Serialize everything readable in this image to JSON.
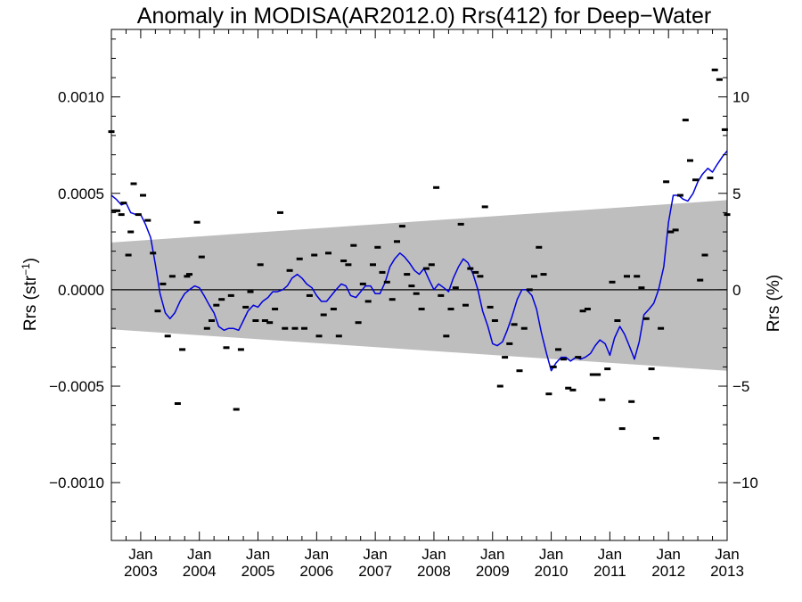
{
  "chart_data": {
    "type": "scatter",
    "title": "Anomaly in MODISA(AR2012.0) Rrs(412) for Deep−Water",
    "ylabel_left_main": "Rrs (str",
    "ylabel_left_sup": "−1",
    "ylabel_left_tail": ")",
    "ylabel_right": "Rrs (%)",
    "xlim": [
      2002.5,
      2013.0
    ],
    "ylim": [
      -0.0013,
      0.00135
    ],
    "ylim_right": [
      -13.0,
      13.5
    ],
    "y_ticks": [
      {
        "value": 0.001,
        "label": "0.0010"
      },
      {
        "value": 0.0005,
        "label": "0.0005"
      },
      {
        "value": 0.0,
        "label": "0.0000"
      },
      {
        "value": -0.0005,
        "label": "−0.0005"
      },
      {
        "value": -0.001,
        "label": "−0.0010"
      }
    ],
    "y_ticks_right": [
      {
        "value": 10,
        "label": "10"
      },
      {
        "value": 5,
        "label": "5"
      },
      {
        "value": 0,
        "label": "0"
      },
      {
        "value": -5,
        "label": "−5"
      },
      {
        "value": -10,
        "label": "−10"
      }
    ],
    "x_ticks": [
      {
        "value": 2003,
        "month": "Jan",
        "year": "2003"
      },
      {
        "value": 2004,
        "month": "Jan",
        "year": "2004"
      },
      {
        "value": 2005,
        "month": "Jan",
        "year": "2005"
      },
      {
        "value": 2006,
        "month": "Jan",
        "year": "2006"
      },
      {
        "value": 2007,
        "month": "Jan",
        "year": "2007"
      },
      {
        "value": 2008,
        "month": "Jan",
        "year": "2008"
      },
      {
        "value": 2009,
        "month": "Jan",
        "year": "2009"
      },
      {
        "value": 2010,
        "month": "Jan",
        "year": "2010"
      },
      {
        "value": 2011,
        "month": "Jan",
        "year": "2011"
      },
      {
        "value": 2012,
        "month": "Jan",
        "year": "2012"
      },
      {
        "value": 2013,
        "month": "Jan",
        "year": "2013"
      }
    ],
    "band": {
      "x": [
        2002.5,
        2013.0
      ],
      "upper": [
        0.000245,
        0.000465
      ],
      "lower": [
        -0.000205,
        -0.00042
      ]
    },
    "series": [
      {
        "values": [
          [
            2002.5,
            0.00082
          ],
          [
            2002.55,
            0.00041
          ],
          [
            2002.6,
            0.00041
          ],
          [
            2002.67,
            0.00039
          ],
          [
            2002.71,
            0.00045
          ],
          [
            2002.79,
            0.00018
          ],
          [
            2002.83,
            0.0003
          ],
          [
            2002.88,
            0.00055
          ],
          [
            2002.96,
            0.00039
          ],
          [
            2003.04,
            0.00049
          ],
          [
            2003.12,
            0.00036
          ],
          [
            2003.21,
            0.00019
          ],
          [
            2003.29,
            -0.00011
          ],
          [
            2003.38,
            3e-05
          ],
          [
            2003.46,
            -0.00024
          ],
          [
            2003.54,
            7e-05
          ],
          [
            2003.63,
            -0.00059
          ],
          [
            2003.71,
            -0.00031
          ],
          [
            2003.79,
            7e-05
          ],
          [
            2003.83,
            8e-05
          ],
          [
            2003.96,
            0.00035
          ],
          [
            2004.04,
            0.00017
          ],
          [
            2004.13,
            -0.0002
          ],
          [
            2004.21,
            -0.00016
          ],
          [
            2004.29,
            -8e-05
          ],
          [
            2004.38,
            -5e-05
          ],
          [
            2004.46,
            -0.0003
          ],
          [
            2004.54,
            -3e-05
          ],
          [
            2004.63,
            -0.00062
          ],
          [
            2004.71,
            -0.00031
          ],
          [
            2004.79,
            -9e-05
          ],
          [
            2004.87,
            -1e-05
          ],
          [
            2004.96,
            -0.00016
          ],
          [
            2005.04,
            0.00013
          ],
          [
            2005.12,
            -0.00016
          ],
          [
            2005.2,
            -0.00017
          ],
          [
            2005.29,
            -0.0001
          ],
          [
            2005.38,
            0.0004
          ],
          [
            2005.46,
            -0.0002
          ],
          [
            2005.54,
            0.0001
          ],
          [
            2005.63,
            -0.0002
          ],
          [
            2005.71,
            0.00016
          ],
          [
            2005.79,
            -0.0002
          ],
          [
            2005.88,
            -3e-05
          ],
          [
            2005.96,
            0.00018
          ],
          [
            2006.04,
            -0.00024
          ],
          [
            2006.12,
            -0.00013
          ],
          [
            2006.2,
            0.00019
          ],
          [
            2006.29,
            -0.0001
          ],
          [
            2006.38,
            -0.00024
          ],
          [
            2006.46,
            0.00015
          ],
          [
            2006.54,
            0.00013
          ],
          [
            2006.63,
            0.00023
          ],
          [
            2006.71,
            -0.00017
          ],
          [
            2006.79,
            3e-05
          ],
          [
            2006.88,
            -6e-05
          ],
          [
            2006.96,
            0.00013
          ],
          [
            2007.04,
            0.00022
          ],
          [
            2007.12,
            9e-05
          ],
          [
            2007.2,
            4e-05
          ],
          [
            2007.29,
            -5e-05
          ],
          [
            2007.37,
            0.00025
          ],
          [
            2007.46,
            0.00033
          ],
          [
            2007.54,
            8e-05
          ],
          [
            2007.62,
            2e-05
          ],
          [
            2007.7,
            -2e-05
          ],
          [
            2007.79,
            -0.0001
          ],
          [
            2007.87,
            0.00011
          ],
          [
            2007.96,
            0.00013
          ],
          [
            2008.04,
            0.00053
          ],
          [
            2008.12,
            -3e-05
          ],
          [
            2008.21,
            -0.00024
          ],
          [
            2008.29,
            -0.0001
          ],
          [
            2008.37,
            1e-05
          ],
          [
            2008.46,
            0.00034
          ],
          [
            2008.54,
            -8e-05
          ],
          [
            2008.62,
            0.00011
          ],
          [
            2008.71,
            9e-05
          ],
          [
            2008.79,
            7e-05
          ],
          [
            2008.87,
            0.00043
          ],
          [
            2008.96,
            -9e-05
          ],
          [
            2009.04,
            -0.00016
          ],
          [
            2009.13,
            -0.0005
          ],
          [
            2009.21,
            -0.00035
          ],
          [
            2009.29,
            -0.00028
          ],
          [
            2009.37,
            -0.00018
          ],
          [
            2009.46,
            -0.00042
          ],
          [
            2009.54,
            -0.0002
          ],
          [
            2009.63,
            0.0
          ],
          [
            2009.71,
            7e-05
          ],
          [
            2009.79,
            0.00022
          ],
          [
            2009.87,
            8e-05
          ],
          [
            2009.96,
            -0.00054
          ],
          [
            2010.04,
            -0.0004
          ],
          [
            2010.12,
            -0.00031
          ],
          [
            2010.21,
            -0.00036
          ],
          [
            2010.29,
            -0.00051
          ],
          [
            2010.37,
            -0.00052
          ],
          [
            2010.46,
            -0.00035
          ],
          [
            2010.54,
            -0.00011
          ],
          [
            2010.62,
            -0.0001
          ],
          [
            2010.71,
            -0.00044
          ],
          [
            2010.79,
            -0.00044
          ],
          [
            2010.87,
            -0.00057
          ],
          [
            2010.96,
            -0.00041
          ],
          [
            2011.04,
            4e-05
          ],
          [
            2011.13,
            -0.00016
          ],
          [
            2011.21,
            -0.00072
          ],
          [
            2011.29,
            7e-05
          ],
          [
            2011.37,
            -0.00058
          ],
          [
            2011.46,
            7e-05
          ],
          [
            2011.54,
            1e-05
          ],
          [
            2011.62,
            -0.00015
          ],
          [
            2011.71,
            -0.00041
          ],
          [
            2011.79,
            -0.00077
          ],
          [
            2011.87,
            -0.0002
          ],
          [
            2011.96,
            0.00056
          ],
          [
            2012.04,
            0.0003
          ],
          [
            2012.12,
            0.00031
          ],
          [
            2012.2,
            0.00049
          ],
          [
            2012.29,
            0.00088
          ],
          [
            2012.37,
            0.00067
          ],
          [
            2012.46,
            0.00057
          ],
          [
            2012.54,
            5e-05
          ],
          [
            2012.62,
            0.00018
          ],
          [
            2012.71,
            0.00058
          ],
          [
            2012.79,
            0.00114
          ],
          [
            2012.87,
            0.00109
          ],
          [
            2012.96,
            0.00083
          ],
          [
            2013.0,
            0.00039
          ]
        ]
      },
      {
        "values": [
          [
            2002.5,
            0.00049
          ],
          [
            2002.58,
            0.00047
          ],
          [
            2002.67,
            0.00044
          ],
          [
            2002.75,
            0.00045
          ],
          [
            2002.83,
            0.0004
          ],
          [
            2002.92,
            0.00039
          ],
          [
            2003.0,
            0.00039
          ],
          [
            2003.08,
            0.00034
          ],
          [
            2003.17,
            0.00027
          ],
          [
            2003.25,
            0.00013
          ],
          [
            2003.33,
            -2e-05
          ],
          [
            2003.42,
            -0.00012
          ],
          [
            2003.5,
            -0.00015
          ],
          [
            2003.58,
            -0.00012
          ],
          [
            2003.67,
            -6e-05
          ],
          [
            2003.75,
            -2e-05
          ],
          [
            2003.83,
            0.0
          ],
          [
            2003.92,
            2e-05
          ],
          [
            2004.0,
            1e-05
          ],
          [
            2004.08,
            -3e-05
          ],
          [
            2004.17,
            -8e-05
          ],
          [
            2004.25,
            -0.00012
          ],
          [
            2004.33,
            -0.00019
          ],
          [
            2004.42,
            -0.00021
          ],
          [
            2004.5,
            -0.0002
          ],
          [
            2004.58,
            -0.0002
          ],
          [
            2004.67,
            -0.00021
          ],
          [
            2004.75,
            -0.00016
          ],
          [
            2004.83,
            -0.00011
          ],
          [
            2004.92,
            -8e-05
          ],
          [
            2005.0,
            -9e-05
          ],
          [
            2005.08,
            -6e-05
          ],
          [
            2005.17,
            -4e-05
          ],
          [
            2005.25,
            -1e-05
          ],
          [
            2005.33,
            -1e-05
          ],
          [
            2005.42,
            0.0
          ],
          [
            2005.5,
            2e-05
          ],
          [
            2005.58,
            6e-05
          ],
          [
            2005.67,
            8e-05
          ],
          [
            2005.75,
            6e-05
          ],
          [
            2005.83,
            3e-05
          ],
          [
            2005.92,
            1e-05
          ],
          [
            2006.0,
            -3e-05
          ],
          [
            2006.08,
            -6e-05
          ],
          [
            2006.17,
            -6e-05
          ],
          [
            2006.25,
            -3e-05
          ],
          [
            2006.33,
            0.0
          ],
          [
            2006.42,
            3e-05
          ],
          [
            2006.5,
            2e-05
          ],
          [
            2006.58,
            -3e-05
          ],
          [
            2006.67,
            -4e-05
          ],
          [
            2006.75,
            -1e-05
          ],
          [
            2006.83,
            2e-05
          ],
          [
            2006.92,
            2e-05
          ],
          [
            2007.0,
            -2e-05
          ],
          [
            2007.08,
            -2e-05
          ],
          [
            2007.17,
            4e-05
          ],
          [
            2007.25,
            0.00012
          ],
          [
            2007.33,
            0.00016
          ],
          [
            2007.42,
            0.00019
          ],
          [
            2007.5,
            0.00017
          ],
          [
            2007.58,
            0.00014
          ],
          [
            2007.67,
            0.0001
          ],
          [
            2007.75,
            8e-05
          ],
          [
            2007.83,
            0.00011
          ],
          [
            2007.92,
            5e-05
          ],
          [
            2008.0,
            0.0
          ],
          [
            2008.08,
            3e-05
          ],
          [
            2008.17,
            1e-05
          ],
          [
            2008.25,
            -1e-05
          ],
          [
            2008.33,
            6e-05
          ],
          [
            2008.42,
            0.00012
          ],
          [
            2008.5,
            0.00016
          ],
          [
            2008.58,
            0.00014
          ],
          [
            2008.67,
            8e-05
          ],
          [
            2008.75,
            0.0
          ],
          [
            2008.83,
            -0.00011
          ],
          [
            2008.92,
            -0.00019
          ],
          [
            2009.0,
            -0.00028
          ],
          [
            2009.08,
            -0.00029
          ],
          [
            2009.17,
            -0.00027
          ],
          [
            2009.25,
            -0.00021
          ],
          [
            2009.33,
            -0.00014
          ],
          [
            2009.42,
            -5e-05
          ],
          [
            2009.5,
            0.0
          ],
          [
            2009.58,
            0.0
          ],
          [
            2009.67,
            -3e-05
          ],
          [
            2009.75,
            -0.0001
          ],
          [
            2009.83,
            -0.00022
          ],
          [
            2009.92,
            -0.00033
          ],
          [
            2010.0,
            -0.00042
          ],
          [
            2010.08,
            -0.00038
          ],
          [
            2010.17,
            -0.00035
          ],
          [
            2010.25,
            -0.00035
          ],
          [
            2010.33,
            -0.00037
          ],
          [
            2010.42,
            -0.00035
          ],
          [
            2010.5,
            -0.00036
          ],
          [
            2010.58,
            -0.00035
          ],
          [
            2010.67,
            -0.00033
          ],
          [
            2010.75,
            -0.00029
          ],
          [
            2010.83,
            -0.00026
          ],
          [
            2010.92,
            -0.00028
          ],
          [
            2011.0,
            -0.00034
          ],
          [
            2011.08,
            -0.00025
          ],
          [
            2011.17,
            -0.00019
          ],
          [
            2011.25,
            -0.00023
          ],
          [
            2011.33,
            -0.00029
          ],
          [
            2011.42,
            -0.00036
          ],
          [
            2011.5,
            -0.00027
          ],
          [
            2011.58,
            -0.00013
          ],
          [
            2011.67,
            -0.0001
          ],
          [
            2011.75,
            -7e-05
          ],
          [
            2011.83,
            0.0
          ],
          [
            2011.92,
            0.00012
          ],
          [
            2012.0,
            0.00035
          ],
          [
            2012.08,
            0.00049
          ],
          [
            2012.17,
            0.00049
          ],
          [
            2012.25,
            0.00047
          ],
          [
            2012.33,
            0.00046
          ],
          [
            2012.42,
            0.0005
          ],
          [
            2012.5,
            0.00056
          ],
          [
            2012.58,
            0.0006
          ],
          [
            2012.67,
            0.00063
          ],
          [
            2012.75,
            0.00061
          ],
          [
            2012.83,
            0.00065
          ],
          [
            2012.92,
            0.00069
          ],
          [
            2013.0,
            0.00072
          ]
        ]
      }
    ],
    "colors": {
      "band": "#bebebe",
      "line": "#0000dd",
      "points": "#000000",
      "axis": "#000000"
    },
    "grid": false,
    "legend": "none"
  }
}
